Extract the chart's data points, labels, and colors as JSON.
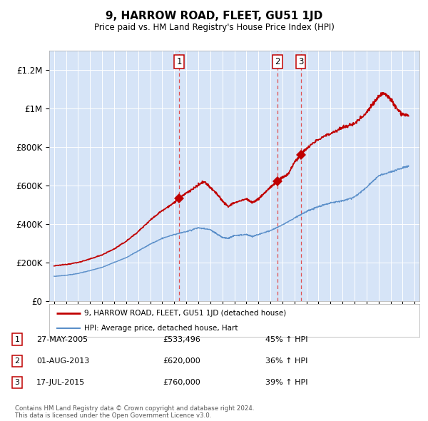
{
  "title": "9, HARROW ROAD, FLEET, GU51 1JD",
  "subtitle": "Price paid vs. HM Land Registry's House Price Index (HPI)",
  "plot_bg_color": "#d6e4f7",
  "ylim": [
    0,
    1300000
  ],
  "yticks": [
    0,
    200000,
    400000,
    600000,
    800000,
    1000000,
    1200000
  ],
  "ytick_labels": [
    "£0",
    "£200K",
    "£400K",
    "£600K",
    "£800K",
    "£1M",
    "£1.2M"
  ],
  "sale_year_floats": [
    2005.41,
    2013.58,
    2015.54
  ],
  "sale_prices": [
    533496,
    620000,
    760000
  ],
  "sale_labels": [
    "1",
    "2",
    "3"
  ],
  "legend_red_label": "9, HARROW ROAD, FLEET, GU51 1JD (detached house)",
  "legend_blue_label": "HPI: Average price, detached house, Hart",
  "table_rows": [
    {
      "num": "1",
      "date": "27-MAY-2005",
      "price": "£533,496",
      "change": "45% ↑ HPI"
    },
    {
      "num": "2",
      "date": "01-AUG-2013",
      "price": "£620,000",
      "change": "36% ↑ HPI"
    },
    {
      "num": "3",
      "date": "17-JUL-2015",
      "price": "£760,000",
      "change": "39% ↑ HPI"
    }
  ],
  "footer": "Contains HM Land Registry data © Crown copyright and database right 2024.\nThis data is licensed under the Open Government Licence v3.0.",
  "red_line_color": "#c00000",
  "blue_line_color": "#5b8fc9",
  "vline_color": "#e05050",
  "marker_color": "#c00000"
}
